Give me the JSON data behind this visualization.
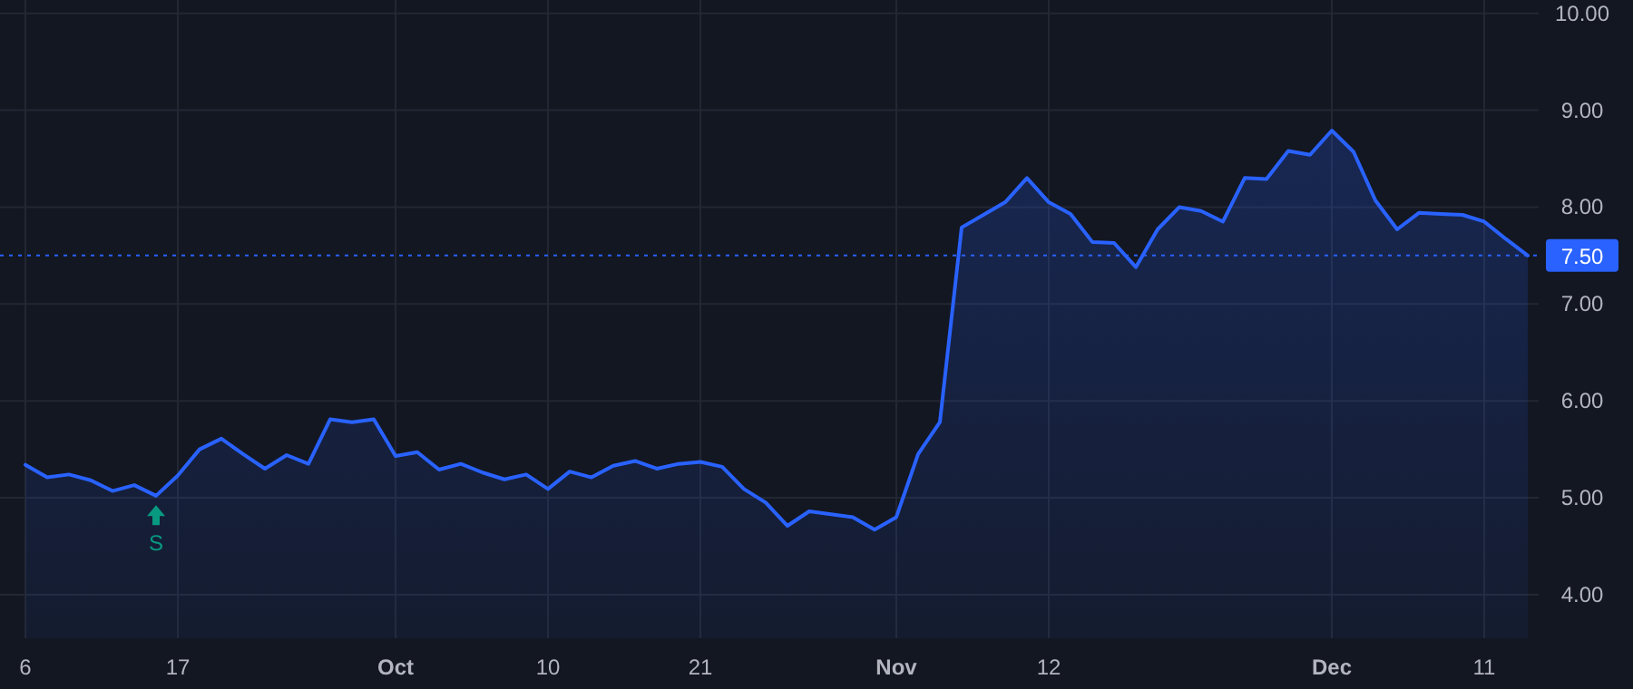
{
  "chart_data": {
    "type": "area",
    "categories": [
      "6",
      null,
      null,
      null,
      null,
      null,
      null,
      "17",
      null,
      null,
      null,
      null,
      null,
      null,
      null,
      null,
      null,
      "Oct",
      null,
      null,
      null,
      null,
      null,
      null,
      "10",
      null,
      null,
      null,
      null,
      null,
      null,
      "21",
      null,
      null,
      null,
      null,
      null,
      null,
      null,
      null,
      "Nov",
      null,
      null,
      null,
      null,
      null,
      null,
      "12",
      null,
      null,
      null,
      null,
      null,
      null,
      null,
      null,
      null,
      null,
      null,
      null,
      "Dec",
      null,
      null,
      null,
      null,
      null,
      null,
      "11",
      null,
      null
    ],
    "series": [
      {
        "color": "#2962ff",
        "values": [
          5.34,
          5.21,
          5.24,
          5.18,
          5.07,
          5.13,
          5.02,
          5.23,
          5.5,
          5.61,
          5.45,
          5.3,
          5.44,
          5.35,
          5.81,
          5.78,
          5.81,
          5.43,
          5.47,
          5.29,
          5.35,
          5.26,
          5.19,
          5.24,
          5.09,
          5.27,
          5.21,
          5.33,
          5.38,
          5.3,
          5.35,
          5.37,
          5.32,
          5.09,
          4.95,
          4.71,
          4.86,
          4.83,
          4.8,
          4.67,
          4.8,
          5.45,
          5.78,
          7.79,
          7.92,
          8.05,
          8.3,
          8.05,
          7.93,
          7.64,
          7.63,
          7.38,
          7.77,
          8.0,
          7.96,
          7.85,
          8.3,
          8.29,
          8.58,
          8.54,
          8.79,
          8.57,
          8.07,
          7.77,
          7.94,
          7.93,
          7.92,
          7.85,
          7.67,
          7.5
        ]
      },
      {
        "type": "scatter",
        "name": "S",
        "color": "#089981",
        "marker": "triangle",
        "values": [
          null,
          null,
          null,
          null,
          null,
          null,
          4.83,
          null,
          null,
          null,
          null,
          null,
          null,
          null,
          null,
          null,
          null,
          null,
          null,
          null,
          null,
          null,
          null,
          null,
          null,
          null,
          null,
          null,
          null,
          null,
          null,
          null,
          null,
          null,
          null,
          null,
          null,
          null,
          null,
          null,
          null,
          null,
          null,
          null,
          null,
          null,
          null,
          null,
          null,
          null,
          null,
          null,
          null,
          null,
          null,
          null,
          null,
          null,
          null,
          null,
          null,
          null,
          null,
          null,
          null,
          null,
          null,
          null,
          null,
          null
        ]
      }
    ],
    "ylim": [
      3.55,
      10.1
    ],
    "yticks": [
      {
        "value": 4,
        "label": "4.00"
      },
      {
        "value": 5,
        "label": "5.00"
      },
      {
        "value": 6,
        "label": "6.00"
      },
      {
        "value": 7,
        "label": "7.00"
      },
      {
        "value": 8,
        "label": "8.00"
      },
      {
        "value": 9,
        "label": "9.00"
      },
      {
        "value": 10,
        "label": "10.00"
      }
    ],
    "ref_lines": [
      {
        "axis": "y",
        "value": 7.5,
        "label": "7.50",
        "color": "#2962ff",
        "line_style": "dotted"
      }
    ],
    "grid": true
  }
}
